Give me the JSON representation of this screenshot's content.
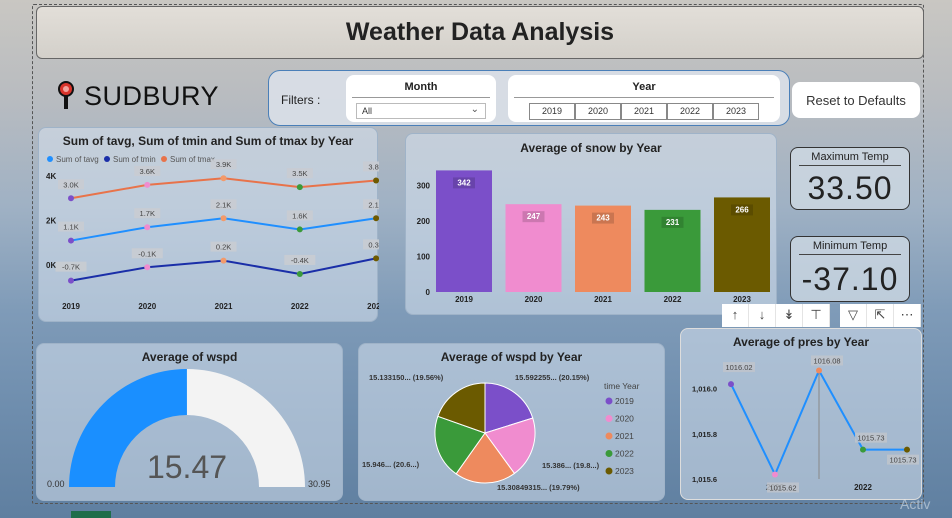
{
  "title": "Weather Data Analysis",
  "city": "SUDBURY",
  "filters": {
    "label": "Filters :",
    "month_label": "Month",
    "month_value": "All",
    "year_label": "Year",
    "years": [
      "2019",
      "2020",
      "2021",
      "2022",
      "2023"
    ]
  },
  "reset_label": "Reset to Defaults",
  "kpis": {
    "max_label": "Maximum Temp",
    "max_value": "33.50",
    "min_label": "Minimum Temp",
    "min_value": "-37.10"
  },
  "toolbar": [
    "arrow-up-icon",
    "arrow-down-icon",
    "double-arrow-down-icon",
    "expand-hierarchy-icon",
    "filter-icon",
    "focus-mode-icon",
    "more-options-icon"
  ],
  "watermark": "Activ",
  "chart_data": [
    {
      "type": "line",
      "title": "Sum of tavg, Sum of tmin and Sum of tmax by Year",
      "categories": [
        "2019",
        "2020",
        "2021",
        "2022",
        "2023"
      ],
      "y_ticks": [
        "4K",
        "2K",
        "0K"
      ],
      "ylim": [
        -1300,
        4000
      ],
      "legend": "top-left",
      "series": [
        {
          "name": "Sum of tavg",
          "color": "#1f8fff",
          "values": [
            1100,
            1700,
            2100,
            1600,
            2100
          ],
          "labels": [
            "1.1K",
            "1.7K",
            "2.1K",
            "1.6K",
            "2.1K"
          ]
        },
        {
          "name": "Sum of tmin",
          "color": "#1a2ea8",
          "values": [
            -700,
            -100,
            200,
            -400,
            300
          ],
          "labels": [
            "-0.7K",
            "-0.1K",
            "0.2K",
            "-0.4K",
            "0.3K"
          ]
        },
        {
          "name": "Sum of tmax",
          "color": "#e8734a",
          "values": [
            3000,
            3600,
            3900,
            3500,
            3800
          ],
          "labels": [
            "3.0K",
            "3.6K",
            "3.9K",
            "3.5K",
            "3.8K"
          ]
        }
      ],
      "point_colors": [
        "#7b4fc9",
        "#f08ccf",
        "#f39a6a",
        "#3a9a3a",
        "#6e5a00"
      ]
    },
    {
      "type": "bar",
      "title": "Average of snow by Year",
      "categories": [
        "2019",
        "2020",
        "2021",
        "2022",
        "2023"
      ],
      "values": [
        342,
        247,
        243,
        231,
        266
      ],
      "colors": [
        "#7b4fc9",
        "#f08ccf",
        "#ee8a5e",
        "#3a9a3a",
        "#6b5a00"
      ],
      "y_ticks": [
        0,
        100,
        200,
        300
      ],
      "ylim": [
        0,
        360
      ]
    },
    {
      "type": "gauge",
      "title": "Average of wspd",
      "value": 15.47,
      "min": 0,
      "max": 30.95,
      "value_label": "15.47",
      "min_label": "0.00",
      "max_label": "30.95"
    },
    {
      "type": "pie",
      "title": "Average of wspd by Year",
      "legend_title": "time Year",
      "categories": [
        "2019",
        "2020",
        "2021",
        "2022",
        "2023"
      ],
      "values": [
        20.15,
        19.8,
        19.79,
        20.6,
        19.56
      ],
      "colors": [
        "#7b4fc9",
        "#f08ccf",
        "#ee8a5e",
        "#3a9a3a",
        "#6b5a00"
      ],
      "slice_labels": [
        "15.592255... (20.15%)",
        "15.386... (19.8...)",
        "15.30849315... (19.79%)",
        "15.946... (20.6...)",
        "15.133150... (19.56%)"
      ]
    },
    {
      "type": "line",
      "title": "Average of pres by Year",
      "categories": [
        "2019",
        "2020",
        "2021",
        "2022",
        "2023"
      ],
      "x_tick_labels": [
        "",
        "2020",
        "",
        "2022",
        ""
      ],
      "values": [
        1016.02,
        1015.62,
        1016.08,
        1015.73,
        1015.73
      ],
      "labels": [
        "1016.02",
        "1015.62",
        "1016.08",
        "1015.73",
        "1015.73"
      ],
      "y_ticks": [
        "1,016.0",
        "1,015.8",
        "1,015.6"
      ],
      "ylim": [
        1015.6,
        1016.1
      ],
      "color": "#1f8fff"
    }
  ]
}
